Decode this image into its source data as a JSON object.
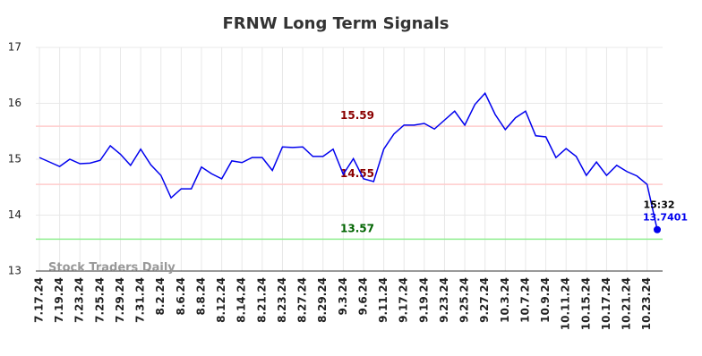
{
  "chart_data": {
    "type": "line",
    "title": "FRNW Long Term Signals",
    "watermark": "Stock Traders Daily",
    "categories": [
      "7.17.24",
      null,
      "7.19.24",
      null,
      "7.23.24",
      null,
      "7.25.24",
      null,
      "7.29.24",
      null,
      "7.31.24",
      null,
      "8.2.24",
      null,
      "8.6.24",
      null,
      "8.8.24",
      null,
      "8.12.24",
      null,
      "8.14.24",
      null,
      "8.21.24",
      null,
      "8.23.24",
      null,
      "8.27.24",
      null,
      "8.29.24",
      null,
      "9.3.24",
      null,
      "9.6.24",
      null,
      "9.11.24",
      null,
      "9.17.24",
      null,
      "9.19.24",
      null,
      "9.23.24",
      null,
      "9.25.24",
      null,
      "9.27.24",
      null,
      "10.3.24",
      null,
      "10.7.24",
      null,
      "10.9.24",
      null,
      "10.11.24",
      null,
      "10.15.24",
      null,
      "10.17.24",
      null,
      "10.21.24",
      null,
      "10.23.24",
      null
    ],
    "series": [
      {
        "color": "#0000ee",
        "values": [
          15.03,
          14.95,
          14.87,
          15.0,
          14.92,
          14.93,
          14.98,
          15.24,
          15.09,
          14.89,
          15.18,
          14.9,
          14.71,
          14.31,
          14.47,
          14.47,
          14.86,
          14.74,
          14.65,
          14.97,
          14.94,
          15.03,
          15.03,
          14.8,
          15.22,
          15.21,
          15.22,
          15.05,
          15.05,
          15.18,
          14.73,
          15.01,
          14.65,
          14.6,
          15.18,
          15.45,
          15.61,
          15.61,
          15.64,
          15.54,
          15.7,
          15.86,
          15.61,
          15.98,
          16.18,
          15.8,
          15.53,
          15.74,
          15.86,
          15.42,
          15.4,
          15.03,
          15.19,
          15.05,
          14.71,
          14.95,
          14.71,
          14.89,
          14.78,
          14.7,
          14.55,
          13.7401
        ]
      }
    ],
    "last_time": "15:32",
    "hlines": [
      {
        "value": 15.59,
        "color": "#ffcccc",
        "label_color": "#8b0000"
      },
      {
        "value": 14.55,
        "color": "#ffcccc",
        "label_color": "#8b0000"
      },
      {
        "value": 13.57,
        "color": "#90ee90",
        "label_color": "#006400"
      }
    ],
    "ylim": [
      13,
      17
    ],
    "yticks": [
      13,
      14,
      15,
      16,
      17
    ],
    "grid": true
  }
}
